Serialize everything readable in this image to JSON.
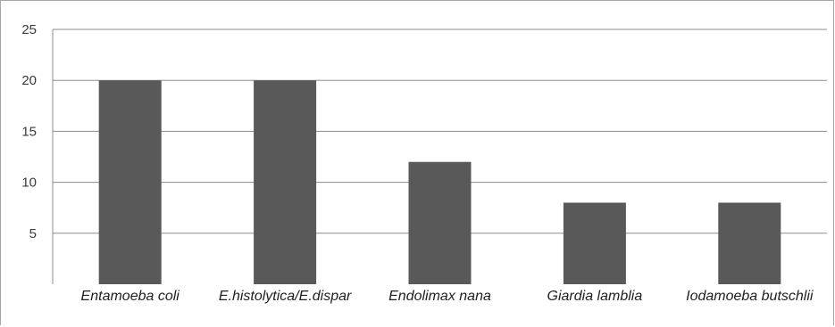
{
  "chart_data": {
    "type": "bar",
    "categories": [
      "Entamoeba coli",
      "E.histolytica/E.dispar",
      "Endolimax nana",
      "Giardia lamblia",
      "Iodamoeba butschlii"
    ],
    "values": [
      20,
      20,
      12,
      8,
      8
    ],
    "yticks": [
      5,
      10,
      15,
      20,
      25
    ],
    "ylim": [
      0,
      25
    ],
    "grid": true,
    "bar_color": "#595959",
    "grid_color": "#8c8c8c",
    "axis_color": "#8c8c8c"
  }
}
